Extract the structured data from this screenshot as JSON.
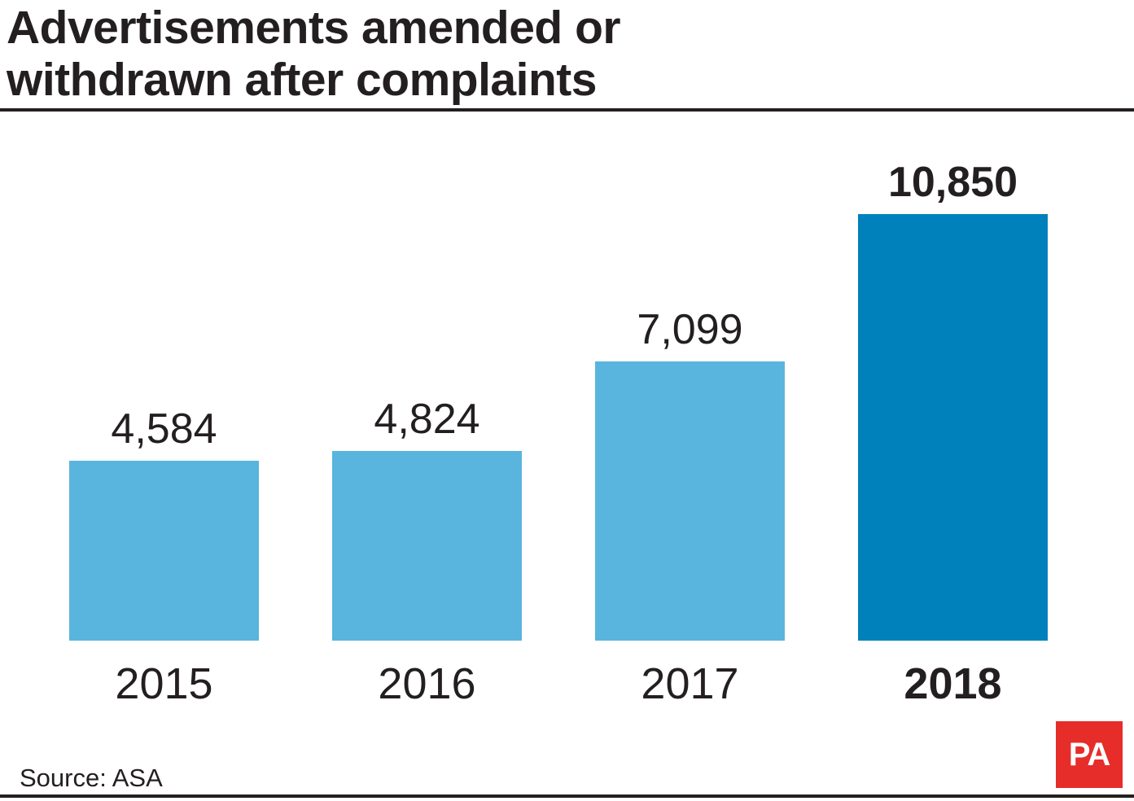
{
  "title": {
    "line1": "Advertisements amended or",
    "line2": "withdrawn after complaints"
  },
  "source": "Source: ASA",
  "logo": "PA",
  "colors": {
    "bar": "#59b5dd",
    "highlight_bar": "#0081bb",
    "text": "#231f20",
    "logo_bg": "#e62d2a"
  },
  "chart_data": {
    "type": "bar",
    "categories": [
      "2015",
      "2016",
      "2017",
      "2018"
    ],
    "values": [
      4584,
      4824,
      7099,
      10850
    ],
    "value_labels": [
      "4,584",
      "4,824",
      "7,099",
      "10,850"
    ],
    "highlight": "2018",
    "title": "Advertisements amended or withdrawn after complaints",
    "xlabel": "",
    "ylabel": "",
    "ylim": [
      0,
      10850
    ],
    "grid": false,
    "legend": "none"
  }
}
